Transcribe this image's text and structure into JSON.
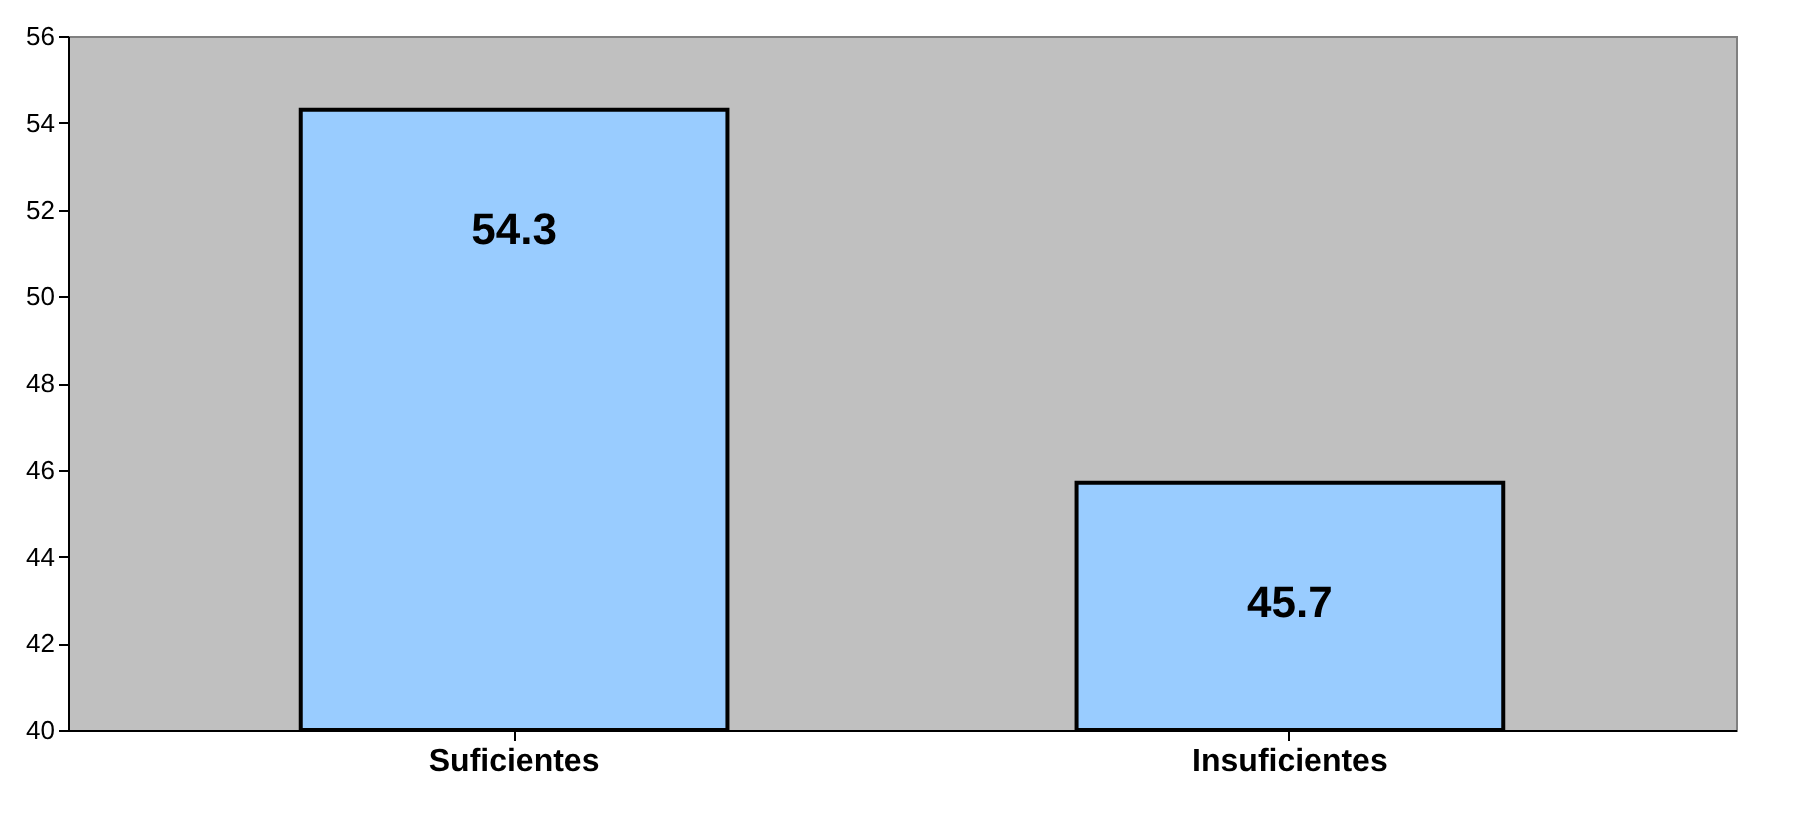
{
  "chart_data": {
    "type": "bar",
    "categories": [
      "Suficientes",
      "Insuficientes"
    ],
    "values": [
      54.3,
      45.7
    ],
    "color": "#99ccff",
    "ylim": [
      40,
      56
    ],
    "yticks": [
      40,
      42,
      44,
      46,
      48,
      50,
      52,
      54,
      56
    ],
    "data_labels": true,
    "grid": false
  }
}
